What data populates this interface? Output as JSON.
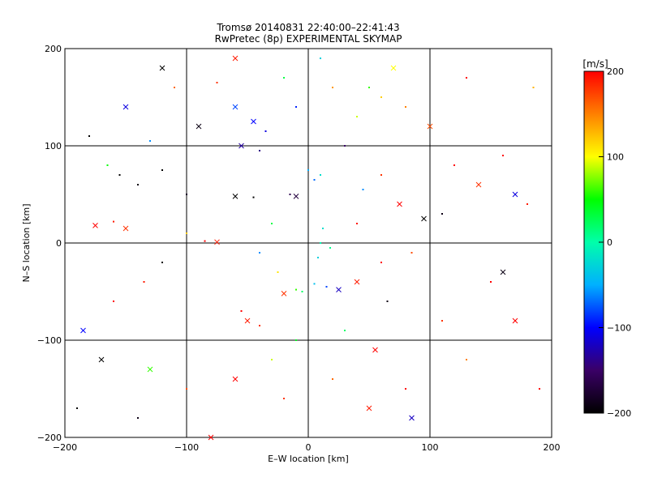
{
  "chart_data": {
    "type": "scatter",
    "title": "Tromsø 20140831 22:40:00–22:41:43",
    "subtitle": "RwPretec (8p) EXPERIMENTAL SKYMAP",
    "xlabel": "E–W location [km]",
    "ylabel": "N–S location [km]",
    "xlim": [
      -200,
      200
    ],
    "ylim": [
      -200,
      200
    ],
    "x_ticks": [
      -200,
      -100,
      0,
      100,
      200
    ],
    "y_ticks": [
      -200,
      -100,
      0,
      100,
      200
    ],
    "grid": true,
    "colorbar": {
      "label": "[m/s]",
      "range": [
        -200,
        200
      ],
      "ticks": [
        200,
        100,
        0,
        -100,
        -200
      ],
      "colors": [
        "#000000",
        "#3a0066",
        "#0000ff",
        "#00b0ff",
        "#00ffaa",
        "#00ff00",
        "#ffff00",
        "#ff8000",
        "#ff0000"
      ]
    },
    "marker_types": [
      "dot",
      "cross"
    ],
    "series": [
      {
        "x": -155,
        "y": 70,
        "v": -200,
        "m": "dot"
      },
      {
        "x": -140,
        "y": 60,
        "v": -190,
        "m": "dot"
      },
      {
        "x": -120,
        "y": 75,
        "v": -200,
        "m": "dot"
      },
      {
        "x": -100,
        "y": 50,
        "v": -180,
        "m": "dot"
      },
      {
        "x": -90,
        "y": 120,
        "v": -190,
        "m": "cross"
      },
      {
        "x": -60,
        "y": 48,
        "v": -200,
        "m": "cross"
      },
      {
        "x": -45,
        "y": 47,
        "v": -200,
        "m": "dot"
      },
      {
        "x": -15,
        "y": 50,
        "v": -160,
        "m": "dot"
      },
      {
        "x": -10,
        "y": 48,
        "v": -170,
        "m": "cross"
      },
      {
        "x": -55,
        "y": 100,
        "v": -130,
        "m": "cross"
      },
      {
        "x": -40,
        "y": 95,
        "v": -140,
        "m": "dot"
      },
      {
        "x": -45,
        "y": 125,
        "v": -100,
        "m": "cross"
      },
      {
        "x": -35,
        "y": 115,
        "v": -110,
        "m": "dot"
      },
      {
        "x": -60,
        "y": 140,
        "v": -80,
        "m": "cross"
      },
      {
        "x": 5,
        "y": 65,
        "v": -70,
        "m": "dot"
      },
      {
        "x": 0,
        "y": 75,
        "v": -50,
        "m": "dot"
      },
      {
        "x": 10,
        "y": 70,
        "v": -20,
        "m": "dot"
      },
      {
        "x": 12,
        "y": 15,
        "v": -20,
        "m": "dot"
      },
      {
        "x": 10,
        "y": 0,
        "v": -5,
        "m": "dot"
      },
      {
        "x": 18,
        "y": -5,
        "v": 10,
        "m": "dot"
      },
      {
        "x": 8,
        "y": -15,
        "v": -30,
        "m": "dot"
      },
      {
        "x": 15,
        "y": -45,
        "v": -80,
        "m": "dot"
      },
      {
        "x": 5,
        "y": -42,
        "v": -40,
        "m": "dot"
      },
      {
        "x": 25,
        "y": -48,
        "v": -120,
        "m": "cross"
      },
      {
        "x": -5,
        "y": -50,
        "v": 20,
        "m": "dot"
      },
      {
        "x": -10,
        "y": -48,
        "v": 60,
        "m": "dot"
      },
      {
        "x": -20,
        "y": -52,
        "v": 180,
        "m": "cross"
      },
      {
        "x": 40,
        "y": -40,
        "v": 190,
        "m": "cross"
      },
      {
        "x": -55,
        "y": -70,
        "v": 200,
        "m": "dot"
      },
      {
        "x": -50,
        "y": -80,
        "v": 190,
        "m": "cross"
      },
      {
        "x": -40,
        "y": -85,
        "v": 180,
        "m": "dot"
      },
      {
        "x": -175,
        "y": 18,
        "v": 200,
        "m": "cross"
      },
      {
        "x": -160,
        "y": 22,
        "v": 190,
        "m": "dot"
      },
      {
        "x": -150,
        "y": 15,
        "v": 180,
        "m": "cross"
      },
      {
        "x": -85,
        "y": 2,
        "v": 200,
        "m": "dot"
      },
      {
        "x": -75,
        "y": 1,
        "v": 190,
        "m": "cross"
      },
      {
        "x": 120,
        "y": 80,
        "v": 200,
        "m": "dot"
      },
      {
        "x": 140,
        "y": 60,
        "v": 180,
        "m": "cross"
      },
      {
        "x": 160,
        "y": 90,
        "v": 200,
        "m": "dot"
      },
      {
        "x": 180,
        "y": 40,
        "v": 190,
        "m": "dot"
      },
      {
        "x": 100,
        "y": 120,
        "v": 170,
        "m": "cross"
      },
      {
        "x": 60,
        "y": 150,
        "v": 120,
        "m": "dot"
      },
      {
        "x": 80,
        "y": 140,
        "v": 150,
        "m": "dot"
      },
      {
        "x": 40,
        "y": 130,
        "v": 90,
        "m": "dot"
      },
      {
        "x": 50,
        "y": 160,
        "v": 60,
        "m": "dot"
      },
      {
        "x": 70,
        "y": 180,
        "v": 100,
        "m": "cross"
      },
      {
        "x": 150,
        "y": -40,
        "v": 200,
        "m": "dot"
      },
      {
        "x": 110,
        "y": -80,
        "v": 180,
        "m": "dot"
      },
      {
        "x": 170,
        "y": -80,
        "v": 200,
        "m": "cross"
      },
      {
        "x": 130,
        "y": -120,
        "v": 150,
        "m": "dot"
      },
      {
        "x": 80,
        "y": -150,
        "v": 200,
        "m": "dot"
      },
      {
        "x": 50,
        "y": -170,
        "v": 190,
        "m": "cross"
      },
      {
        "x": 20,
        "y": -140,
        "v": 160,
        "m": "dot"
      },
      {
        "x": -20,
        "y": -160,
        "v": 180,
        "m": "dot"
      },
      {
        "x": -60,
        "y": -140,
        "v": 200,
        "m": "cross"
      },
      {
        "x": -100,
        "y": -150,
        "v": 170,
        "m": "dot"
      },
      {
        "x": -130,
        "y": -130,
        "v": 60,
        "m": "cross"
      },
      {
        "x": -170,
        "y": -120,
        "v": -200,
        "m": "cross"
      },
      {
        "x": -185,
        "y": -90,
        "v": -100,
        "m": "cross"
      },
      {
        "x": -160,
        "y": -60,
        "v": 200,
        "m": "dot"
      },
      {
        "x": -140,
        "y": -180,
        "v": -190,
        "m": "dot"
      },
      {
        "x": -180,
        "y": 110,
        "v": -200,
        "m": "dot"
      },
      {
        "x": -150,
        "y": 140,
        "v": -110,
        "m": "cross"
      },
      {
        "x": -130,
        "y": 105,
        "v": -60,
        "m": "dot"
      },
      {
        "x": -110,
        "y": 160,
        "v": 160,
        "m": "dot"
      },
      {
        "x": -60,
        "y": 190,
        "v": 190,
        "m": "cross"
      },
      {
        "x": -20,
        "y": 170,
        "v": 30,
        "m": "dot"
      },
      {
        "x": 10,
        "y": 190,
        "v": -30,
        "m": "dot"
      },
      {
        "x": 85,
        "y": -180,
        "v": -120,
        "m": "cross"
      },
      {
        "x": 110,
        "y": 30,
        "v": -190,
        "m": "dot"
      },
      {
        "x": 95,
        "y": 25,
        "v": -200,
        "m": "cross"
      },
      {
        "x": 170,
        "y": 50,
        "v": -110,
        "m": "cross"
      },
      {
        "x": 160,
        "y": -30,
        "v": -190,
        "m": "cross"
      },
      {
        "x": -10,
        "y": -100,
        "v": 40,
        "m": "dot"
      },
      {
        "x": 30,
        "y": -90,
        "v": 20,
        "m": "dot"
      },
      {
        "x": -30,
        "y": -120,
        "v": 90,
        "m": "dot"
      },
      {
        "x": 55,
        "y": -110,
        "v": 200,
        "m": "cross"
      },
      {
        "x": 65,
        "y": -60,
        "v": -190,
        "m": "dot"
      },
      {
        "x": -120,
        "y": -20,
        "v": -200,
        "m": "dot"
      },
      {
        "x": -135,
        "y": -40,
        "v": 190,
        "m": "dot"
      },
      {
        "x": -100,
        "y": 10,
        "v": 120,
        "m": "dot"
      },
      {
        "x": 30,
        "y": 100,
        "v": -150,
        "m": "dot"
      },
      {
        "x": 45,
        "y": 55,
        "v": -60,
        "m": "dot"
      },
      {
        "x": 60,
        "y": 70,
        "v": 180,
        "m": "dot"
      },
      {
        "x": 75,
        "y": 40,
        "v": 200,
        "m": "cross"
      },
      {
        "x": 40,
        "y": 20,
        "v": 190,
        "m": "dot"
      },
      {
        "x": 60,
        "y": -20,
        "v": 200,
        "m": "dot"
      },
      {
        "x": 85,
        "y": -10,
        "v": 170,
        "m": "dot"
      },
      {
        "x": -30,
        "y": 20,
        "v": 30,
        "m": "dot"
      },
      {
        "x": -40,
        "y": -10,
        "v": -60,
        "m": "dot"
      },
      {
        "x": -25,
        "y": -30,
        "v": 110,
        "m": "dot"
      },
      {
        "x": 185,
        "y": 160,
        "v": 130,
        "m": "dot"
      },
      {
        "x": 190,
        "y": -150,
        "v": 200,
        "m": "dot"
      },
      {
        "x": -190,
        "y": -170,
        "v": -200,
        "m": "dot"
      },
      {
        "x": -120,
        "y": 180,
        "v": -200,
        "m": "cross"
      },
      {
        "x": -75,
        "y": 165,
        "v": 180,
        "m": "dot"
      },
      {
        "x": -10,
        "y": 140,
        "v": -90,
        "m": "dot"
      },
      {
        "x": 20,
        "y": 160,
        "v": 140,
        "m": "dot"
      },
      {
        "x": 130,
        "y": 170,
        "v": 200,
        "m": "dot"
      },
      {
        "x": -80,
        "y": -200,
        "v": 200,
        "m": "cross"
      },
      {
        "x": -165,
        "y": 80,
        "v": 50,
        "m": "dot"
      }
    ]
  }
}
